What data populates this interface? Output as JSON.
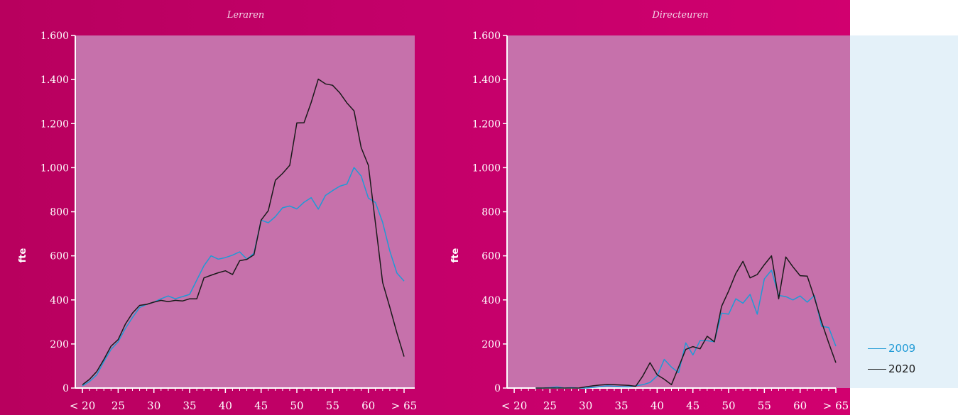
{
  "legend": {
    "items": [
      {
        "label": "2009",
        "color": "#1f9ad6"
      },
      {
        "label": "2020",
        "color": "#1a1a1a"
      }
    ]
  },
  "colors": {
    "background": "#c4006a",
    "plot": "#c671ab",
    "y2009": "#1f9ad6",
    "y2020": "#1a1a1a"
  },
  "chart_data": [
    {
      "type": "line",
      "title": "Leraren",
      "xlabel": "",
      "ylabel": "fte",
      "ylim": [
        0,
        1600
      ],
      "xlim": [
        19,
        65
      ],
      "yticks": [
        0,
        200,
        400,
        600,
        800,
        1000,
        1200,
        1400,
        1600
      ],
      "ytick_labels": [
        "0",
        "200",
        "400",
        "600",
        "800",
        "1.000",
        "1.200",
        "1.400",
        "1.600"
      ],
      "xticks": [
        20,
        25,
        30,
        35,
        40,
        45,
        50,
        55,
        60,
        65
      ],
      "xtick_labels": [
        "< 20",
        "25",
        "30",
        "35",
        "40",
        "45",
        "50",
        "55",
        "60",
        "> 65"
      ],
      "grid": false,
      "series": [
        {
          "name": "2009",
          "color": "#1f9ad6",
          "x": [
            20,
            21,
            22,
            23,
            24,
            25,
            26,
            27,
            28,
            29,
            30,
            31,
            32,
            33,
            34,
            35,
            36,
            37,
            38,
            39,
            40,
            41,
            42,
            43,
            44,
            45,
            46,
            47,
            48,
            49,
            50,
            51,
            52,
            53,
            54,
            55,
            56,
            57,
            58,
            59,
            60,
            61,
            62,
            63,
            64,
            65
          ],
          "y": [
            10,
            30,
            60,
            120,
            175,
            210,
            270,
            320,
            365,
            380,
            390,
            405,
            418,
            405,
            415,
            425,
            490,
            555,
            600,
            585,
            592,
            603,
            618,
            585,
            612,
            762,
            750,
            778,
            818,
            826,
            813,
            843,
            864,
            812,
            874,
            896,
            916,
            926,
            1001,
            962,
            862,
            842,
            752,
            622,
            522,
            485
          ]
        },
        {
          "name": "2020",
          "color": "#1a1a1a",
          "x": [
            20,
            21,
            22,
            23,
            24,
            25,
            26,
            27,
            28,
            29,
            30,
            31,
            32,
            33,
            34,
            35,
            36,
            37,
            38,
            39,
            40,
            41,
            42,
            43,
            44,
            45,
            46,
            47,
            48,
            49,
            50,
            51,
            52,
            53,
            54,
            55,
            56,
            57,
            58,
            59,
            60,
            61,
            62,
            63,
            64,
            65
          ],
          "y": [
            15,
            40,
            75,
            130,
            190,
            220,
            290,
            340,
            375,
            380,
            390,
            398,
            392,
            398,
            395,
            405,
            405,
            500,
            512,
            523,
            532,
            515,
            578,
            584,
            605,
            762,
            805,
            943,
            974,
            1011,
            1203,
            1204,
            1296,
            1402,
            1380,
            1374,
            1340,
            1294,
            1258,
            1091,
            1011,
            748,
            479,
            367,
            250,
            143
          ]
        }
      ]
    },
    {
      "type": "line",
      "title": "Directeuren",
      "xlabel": "",
      "ylabel": "fte",
      "ylim": [
        0,
        1600
      ],
      "xlim": [
        19,
        65
      ],
      "yticks": [
        0,
        200,
        400,
        600,
        800,
        1000,
        1200,
        1400,
        1600
      ],
      "ytick_labels": [
        "0",
        "200",
        "400",
        "600",
        "800",
        "1.000",
        "1.200",
        "1.400",
        "1.600"
      ],
      "xticks": [
        20,
        25,
        30,
        35,
        40,
        45,
        50,
        55,
        60,
        65
      ],
      "xtick_labels": [
        "< 20",
        "25",
        "30",
        "35",
        "40",
        "45",
        "50",
        "55",
        "60",
        "> 65"
      ],
      "grid": false,
      "series": [
        {
          "name": "2009",
          "color": "#1f9ad6",
          "x": [
            23,
            24,
            25,
            26,
            27,
            28,
            29,
            30,
            31,
            32,
            33,
            34,
            35,
            36,
            37,
            38,
            39,
            40,
            41,
            42,
            43,
            44,
            45,
            46,
            47,
            48,
            49,
            50,
            51,
            52,
            53,
            54,
            55,
            56,
            57,
            58,
            59,
            60,
            61,
            62,
            63,
            64,
            65
          ],
          "y": [
            0,
            0,
            2,
            5,
            0,
            2,
            0,
            0,
            3,
            6,
            10,
            8,
            6,
            5,
            10,
            15,
            25,
            55,
            130,
            95,
            70,
            205,
            150,
            215,
            215,
            210,
            340,
            335,
            405,
            385,
            425,
            335,
            495,
            535,
            420,
            415,
            400,
            418,
            390,
            420,
            280,
            275,
            190
          ]
        },
        {
          "name": "2020",
          "color": "#1a1a1a",
          "x": [
            23,
            24,
            25,
            26,
            27,
            28,
            29,
            30,
            31,
            32,
            33,
            34,
            35,
            36,
            37,
            38,
            39,
            40,
            41,
            42,
            43,
            44,
            45,
            46,
            47,
            48,
            49,
            50,
            51,
            52,
            53,
            54,
            55,
            56,
            57,
            58,
            59,
            60,
            61,
            62,
            63,
            64,
            65
          ],
          "y": [
            0,
            0,
            0,
            0,
            0,
            0,
            0,
            5,
            10,
            14,
            16,
            15,
            14,
            12,
            8,
            55,
            115,
            60,
            40,
            15,
            95,
            175,
            188,
            178,
            235,
            210,
            370,
            440,
            520,
            575,
            500,
            515,
            560,
            600,
            405,
            595,
            550,
            510,
            508,
            410,
            300,
            205,
            115
          ]
        }
      ]
    }
  ]
}
